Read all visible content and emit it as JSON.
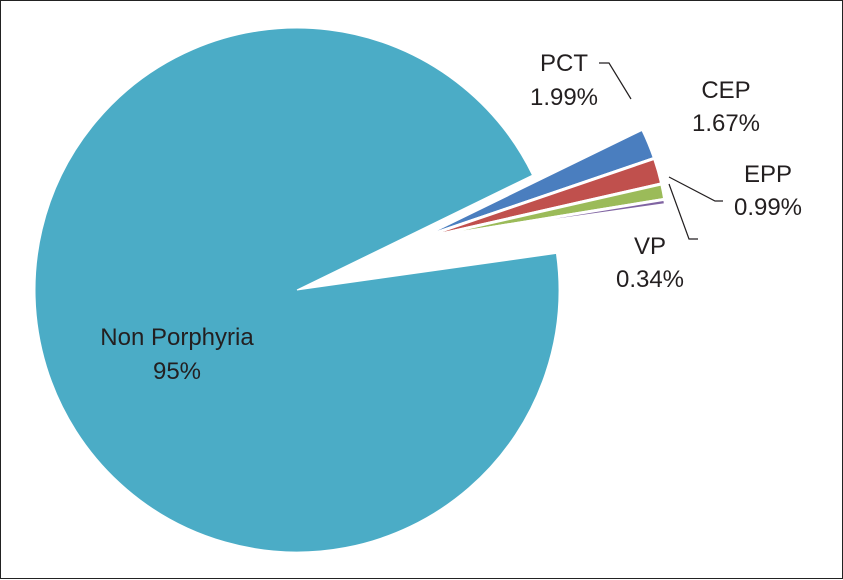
{
  "chart_data": {
    "type": "pie",
    "title": "",
    "slices": [
      {
        "name": "PCT",
        "value_label": "1.99%",
        "value": 1.99,
        "color": "#4a7ebf"
      },
      {
        "name": "CEP",
        "value_label": "1.67%",
        "value": 1.67,
        "color": "#c0504d"
      },
      {
        "name": "EPP",
        "value_label": "0.99%",
        "value": 0.99,
        "color": "#9bbb59"
      },
      {
        "name": "VP",
        "value_label": "0.34%",
        "value": 0.34,
        "color": "#8064a2"
      },
      {
        "name": "Non Porphyria",
        "value_label": "95%",
        "value": 95,
        "color": "#4bacc6"
      }
    ],
    "exploded": [
      "PCT",
      "CEP",
      "EPP",
      "VP"
    ],
    "legend": "none"
  }
}
